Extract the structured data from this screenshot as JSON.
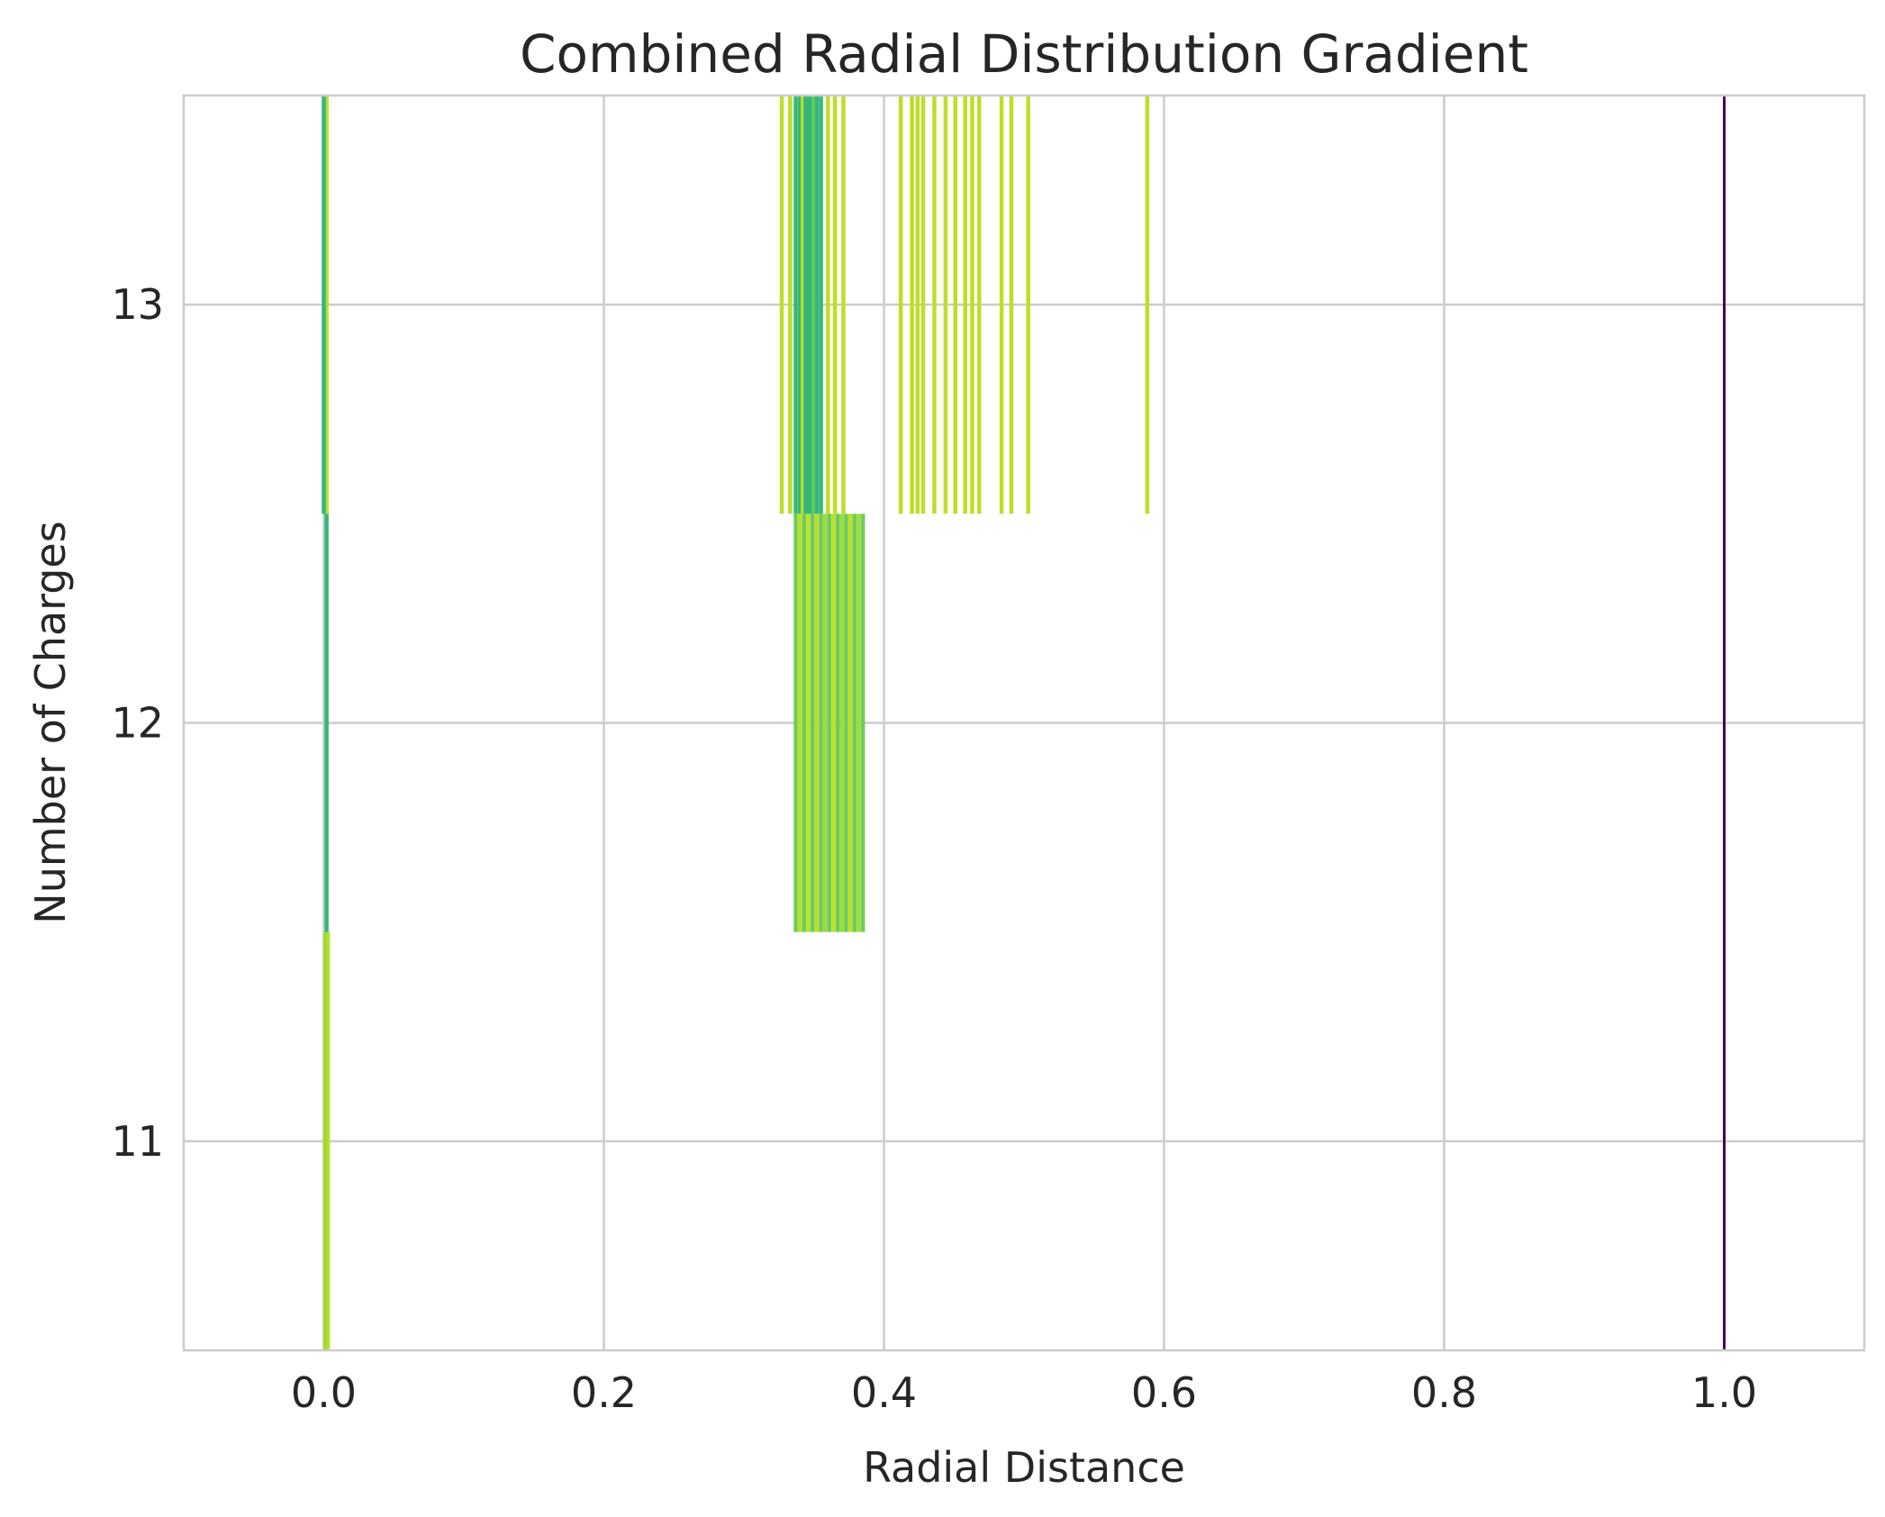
{
  "chart_data": {
    "type": "heatmap",
    "title": "Combined Radial Distribution Gradient",
    "xlabel": "Radial Distance",
    "ylabel": "Number of Charges",
    "xlim": [
      -0.1,
      1.1
    ],
    "ylim": [
      10.5,
      13.5
    ],
    "xticks": [
      0.0,
      0.2,
      0.4,
      0.6,
      0.8,
      1.0
    ],
    "xtick_labels": [
      "0.0",
      "0.2",
      "0.4",
      "0.6",
      "0.8",
      "1.0"
    ],
    "yticks": [
      11,
      12,
      13
    ],
    "ytick_labels": [
      "11",
      "12",
      "13"
    ],
    "grid": true,
    "row_band_halfwidth": 0.5,
    "colors": {
      "yellow_green": "#bddf26",
      "lime": "#a0da39",
      "green": "#6ccd5a",
      "teal_green": "#35b779",
      "purple": "#440154",
      "grid": "#cccccc",
      "background": "#ffffff"
    },
    "series": [
      {
        "charges": 13,
        "lines": [
          {
            "x": 0.002,
            "color": "yellow_green"
          },
          {
            "x": 0.0,
            "color": "teal_green"
          },
          {
            "x": 0.327,
            "color": "yellow_green"
          },
          {
            "x": 0.333,
            "color": "yellow_green"
          },
          {
            "x": 0.337,
            "color": "teal_green"
          },
          {
            "x": 0.34,
            "color": "teal_green"
          },
          {
            "x": 0.342,
            "color": "yellow_green"
          },
          {
            "x": 0.344,
            "color": "teal_green"
          },
          {
            "x": 0.346,
            "color": "teal_green"
          },
          {
            "x": 0.348,
            "color": "teal_green"
          },
          {
            "x": 0.35,
            "color": "green"
          },
          {
            "x": 0.352,
            "color": "teal_green"
          },
          {
            "x": 0.355,
            "color": "teal_green"
          },
          {
            "x": 0.36,
            "color": "yellow_green"
          },
          {
            "x": 0.365,
            "color": "yellow_green"
          },
          {
            "x": 0.371,
            "color": "yellow_green"
          },
          {
            "x": 0.412,
            "color": "yellow_green"
          },
          {
            "x": 0.42,
            "color": "yellow_green"
          },
          {
            "x": 0.424,
            "color": "yellow_green"
          },
          {
            "x": 0.428,
            "color": "yellow_green"
          },
          {
            "x": 0.436,
            "color": "yellow_green"
          },
          {
            "x": 0.444,
            "color": "yellow_green"
          },
          {
            "x": 0.451,
            "color": "yellow_green"
          },
          {
            "x": 0.458,
            "color": "yellow_green"
          },
          {
            "x": 0.463,
            "color": "yellow_green"
          },
          {
            "x": 0.468,
            "color": "yellow_green"
          },
          {
            "x": 0.484,
            "color": "yellow_green"
          },
          {
            "x": 0.491,
            "color": "yellow_green"
          },
          {
            "x": 0.503,
            "color": "yellow_green"
          },
          {
            "x": 0.588,
            "color": "yellow_green"
          },
          {
            "x": 1.0,
            "color": "purple"
          }
        ]
      },
      {
        "charges": 12,
        "lines": [
          {
            "x": 0.002,
            "color": "teal_green"
          },
          {
            "x": 0.337,
            "color": "green"
          },
          {
            "x": 0.34,
            "color": "yellow_green"
          },
          {
            "x": 0.343,
            "color": "green"
          },
          {
            "x": 0.346,
            "color": "yellow_green"
          },
          {
            "x": 0.349,
            "color": "green"
          },
          {
            "x": 0.352,
            "color": "yellow_green"
          },
          {
            "x": 0.355,
            "color": "green"
          },
          {
            "x": 0.358,
            "color": "lime"
          },
          {
            "x": 0.361,
            "color": "green"
          },
          {
            "x": 0.364,
            "color": "yellow_green"
          },
          {
            "x": 0.367,
            "color": "green"
          },
          {
            "x": 0.37,
            "color": "lime"
          },
          {
            "x": 0.373,
            "color": "green"
          },
          {
            "x": 0.376,
            "color": "yellow_green"
          },
          {
            "x": 0.379,
            "color": "green"
          },
          {
            "x": 0.382,
            "color": "lime"
          },
          {
            "x": 0.385,
            "color": "green"
          },
          {
            "x": 1.0,
            "color": "purple"
          }
        ]
      },
      {
        "charges": 11,
        "lines": [
          {
            "x": 0.003,
            "color": "yellow_green"
          },
          {
            "x": 0.001,
            "color": "lime"
          },
          {
            "x": 1.0,
            "color": "purple"
          }
        ]
      }
    ]
  }
}
